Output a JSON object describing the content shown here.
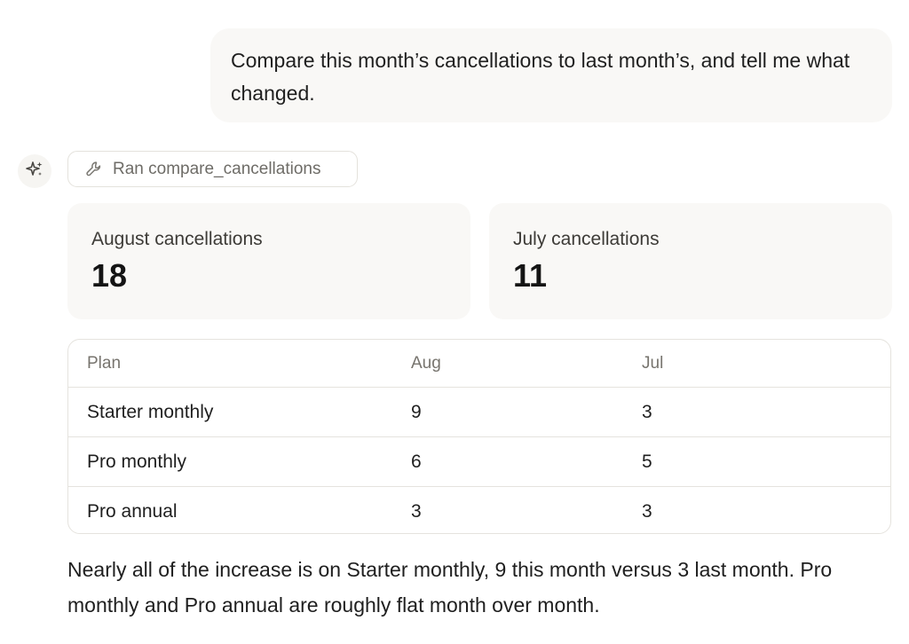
{
  "user_message": "Compare this month’s cancellations to last month’s, and tell me what changed.",
  "assistant": {
    "icon": "sparkle-icon",
    "tool_call": {
      "icon": "wrench-icon",
      "label": "Ran compare_cancellations"
    },
    "stats": [
      {
        "label": "August cancellations",
        "value": "18"
      },
      {
        "label": "July cancellations",
        "value": "11"
      }
    ],
    "table": {
      "headers": [
        "Plan",
        "Aug",
        "Jul"
      ],
      "rows": [
        [
          "Starter monthly",
          "9",
          "3"
        ],
        [
          "Pro monthly",
          "6",
          "5"
        ],
        [
          "Pro annual",
          "3",
          "3"
        ]
      ]
    },
    "summary": "Nearly all of the increase is on Starter monthly, 9 this month versus 3 last month. Pro monthly and Pro annual are roughly flat month over month."
  }
}
